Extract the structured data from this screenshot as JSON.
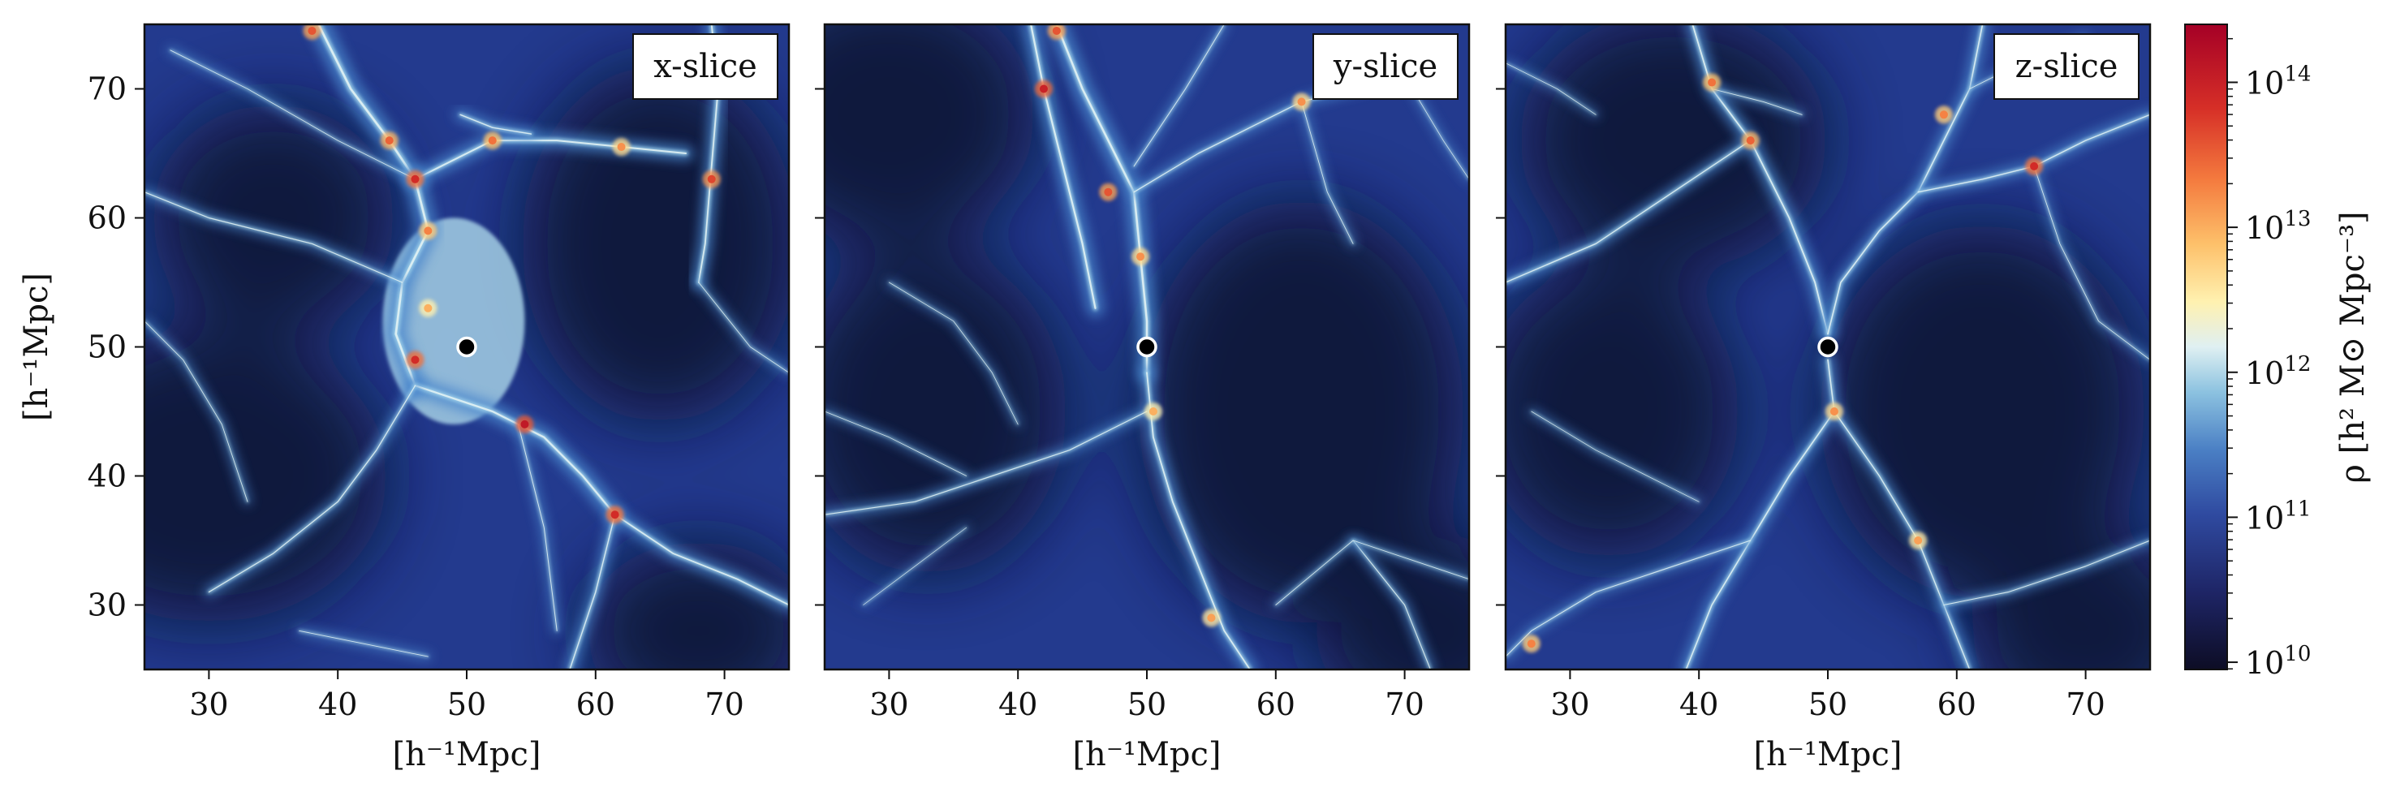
{
  "chart_data": [
    {
      "type": "heatmap",
      "panel_label": "x-slice",
      "xlabel": "[h⁻¹Mpc]",
      "ylabel": "[h⁻¹Mpc]",
      "xlim": [
        25,
        75
      ],
      "ylim": [
        25,
        75
      ],
      "xticks": [
        30,
        40,
        50,
        60,
        70
      ],
      "yticks": [
        30,
        40,
        50,
        60,
        70
      ],
      "marker": {
        "x": 50,
        "y": 50
      },
      "filaments": [
        {
          "pts": [
            [
              38.5,
              75
            ],
            [
              41,
              70
            ],
            [
              44,
              66
            ],
            [
              46,
              63
            ]
          ],
          "w": 3.0
        },
        {
          "pts": [
            [
              46,
              63
            ],
            [
              52,
              66
            ],
            [
              57,
              66
            ],
            [
              62,
              65.5
            ],
            [
              67,
              65
            ]
          ],
          "w": 2.2
        },
        {
          "pts": [
            [
              49.5,
              68
            ],
            [
              52,
              67
            ],
            [
              55,
              66.5
            ]
          ],
          "w": 1.6
        },
        {
          "pts": [
            [
              69,
              75
            ],
            [
              69.5,
              70
            ],
            [
              69,
              64
            ],
            [
              68.5,
              58
            ],
            [
              68,
              55
            ]
          ],
          "w": 2.0
        },
        {
          "pts": [
            [
              46,
              63
            ],
            [
              47,
              59
            ],
            [
              45,
              55
            ],
            [
              44.5,
              51
            ],
            [
              46,
              47
            ]
          ],
          "w": 3.0
        },
        {
          "pts": [
            [
              46,
              47
            ],
            [
              52,
              45
            ],
            [
              56,
              43
            ],
            [
              59,
              40
            ],
            [
              61.5,
              37
            ]
          ],
          "w": 2.6
        },
        {
          "pts": [
            [
              61.5,
              37
            ],
            [
              66,
              34
            ],
            [
              71,
              32
            ],
            [
              75,
              30
            ]
          ],
          "w": 2.0
        },
        {
          "pts": [
            [
              61.5,
              37
            ],
            [
              60,
              31
            ],
            [
              58,
              25
            ]
          ],
          "w": 1.6
        },
        {
          "pts": [
            [
              46,
              47
            ],
            [
              43,
              42
            ],
            [
              40,
              38
            ],
            [
              35,
              34
            ],
            [
              30,
              31
            ]
          ],
          "w": 1.4
        },
        {
          "pts": [
            [
              45,
              55
            ],
            [
              38,
              58
            ],
            [
              30,
              60
            ],
            [
              25,
              62
            ]
          ],
          "w": 1.3
        },
        {
          "pts": [
            [
              54,
              44
            ],
            [
              56,
              36
            ],
            [
              57,
              28
            ]
          ],
          "w": 1.1
        },
        {
          "pts": [
            [
              25,
              52
            ],
            [
              28,
              49
            ],
            [
              31,
              44
            ],
            [
              33,
              38
            ]
          ],
          "w": 1.0
        },
        {
          "pts": [
            [
              37,
              28
            ],
            [
              42,
              27
            ],
            [
              47,
              26
            ]
          ],
          "w": 1.0
        },
        {
          "pts": [
            [
              68,
              55
            ],
            [
              72,
              50
            ],
            [
              75,
              48
            ]
          ],
          "w": 1.0
        },
        {
          "pts": [
            [
              46,
              63
            ],
            [
              40,
              66
            ],
            [
              33,
              70
            ],
            [
              27,
              73
            ]
          ],
          "w": 1.0
        }
      ],
      "blobs": [
        {
          "x": 49,
          "y": 52,
          "rx": 5.5,
          "ry": 8.0,
          "v": 11.9
        }
      ],
      "hotspots": [
        [
          38,
          74.5,
          13.6
        ],
        [
          44,
          66,
          13.5
        ],
        [
          46,
          63,
          13.9
        ],
        [
          52,
          66,
          13.4
        ],
        [
          69,
          63,
          13.7
        ],
        [
          62,
          65.5,
          13.2
        ],
        [
          47,
          59,
          13.3
        ],
        [
          46,
          49,
          13.9
        ],
        [
          54.5,
          44,
          14.1
        ],
        [
          61.5,
          37,
          13.9
        ],
        [
          47,
          53,
          13.0
        ]
      ]
    },
    {
      "type": "heatmap",
      "panel_label": "y-slice",
      "xlabel": "[h⁻¹Mpc]",
      "ylabel": "",
      "xlim": [
        25,
        75
      ],
      "ylim": [
        25,
        75
      ],
      "xticks": [
        30,
        40,
        50,
        60,
        70
      ],
      "yticks": [
        30,
        40,
        50,
        60,
        70
      ],
      "marker": {
        "x": 50,
        "y": 50
      },
      "filaments": [
        {
          "pts": [
            [
              43,
              75
            ],
            [
              45,
              70
            ],
            [
              47,
              66
            ],
            [
              49,
              62
            ],
            [
              49.5,
              57
            ],
            [
              50,
              52
            ],
            [
              50,
              48
            ]
          ],
          "w": 2.8
        },
        {
          "pts": [
            [
              50,
              48
            ],
            [
              50.5,
              43
            ],
            [
              52,
              38
            ],
            [
              54,
              33
            ],
            [
              56,
              28
            ],
            [
              58,
              25
            ]
          ],
          "w": 2.0
        },
        {
          "pts": [
            [
              41,
              75
            ],
            [
              42,
              70
            ],
            [
              43,
              66
            ],
            [
              44,
              62
            ],
            [
              45,
              58
            ],
            [
              46,
              53
            ]
          ],
          "w": 2.4
        },
        {
          "pts": [
            [
              49,
              62
            ],
            [
              54,
              65
            ],
            [
              58,
              67
            ],
            [
              62,
              69
            ],
            [
              66,
              70
            ],
            [
              70,
              71
            ]
          ],
          "w": 1.4
        },
        {
          "pts": [
            [
              49,
              64
            ],
            [
              53,
              70
            ],
            [
              56,
              75
            ]
          ],
          "w": 1.1
        },
        {
          "pts": [
            [
              50,
              45
            ],
            [
              44,
              42
            ],
            [
              38,
              40
            ],
            [
              32,
              38
            ],
            [
              25,
              37
            ]
          ],
          "w": 1.3
        },
        {
          "pts": [
            [
              62,
              69
            ],
            [
              64,
              62
            ],
            [
              66,
              58
            ]
          ],
          "w": 1.0
        },
        {
          "pts": [
            [
              66,
              35
            ],
            [
              70,
              30
            ],
            [
              72,
              25
            ]
          ],
          "w": 1.2
        },
        {
          "pts": [
            [
              60,
              30
            ],
            [
              66,
              35
            ],
            [
              72,
              33
            ],
            [
              75,
              32
            ]
          ],
          "w": 1.0
        },
        {
          "pts": [
            [
              30,
              55
            ],
            [
              35,
              52
            ],
            [
              38,
              48
            ],
            [
              40,
              44
            ]
          ],
          "w": 0.9
        },
        {
          "pts": [
            [
              25,
              45
            ],
            [
              30,
              43
            ],
            [
              36,
              40
            ]
          ],
          "w": 0.9
        },
        {
          "pts": [
            [
              28,
              30
            ],
            [
              32,
              33
            ],
            [
              36,
              36
            ]
          ],
          "w": 0.8
        },
        {
          "pts": [
            [
              70,
              71
            ],
            [
              73,
              66
            ],
            [
              75,
              63
            ]
          ],
          "w": 0.9
        }
      ],
      "blobs": [],
      "hotspots": [
        [
          42,
          70,
          14.0
        ],
        [
          43,
          74.5,
          13.6
        ],
        [
          47,
          62,
          13.6
        ],
        [
          49.5,
          57,
          13.2
        ],
        [
          62,
          69,
          13.2
        ],
        [
          50.5,
          45,
          13.0
        ],
        [
          55,
          29,
          13.1
        ]
      ]
    },
    {
      "type": "heatmap",
      "panel_label": "z-slice",
      "xlabel": "[h⁻¹Mpc]",
      "ylabel": "",
      "xlim": [
        25,
        75
      ],
      "ylim": [
        25,
        75
      ],
      "xticks": [
        30,
        40,
        50,
        60,
        70
      ],
      "yticks": [
        30,
        40,
        50,
        60,
        70
      ],
      "marker": {
        "x": 50,
        "y": 50
      },
      "filaments": [
        {
          "pts": [
            [
              39.5,
              75
            ],
            [
              41,
              70
            ],
            [
              44,
              66
            ],
            [
              47,
              60
            ],
            [
              49,
              55
            ],
            [
              50,
              51
            ]
          ],
          "w": 2.0
        },
        {
          "pts": [
            [
              50,
              51
            ],
            [
              51,
              55
            ],
            [
              54,
              59
            ],
            [
              57,
              62
            ],
            [
              59,
              66
            ],
            [
              61,
              70
            ],
            [
              62,
              75
            ]
          ],
          "w": 1.8
        },
        {
          "pts": [
            [
              44,
              66
            ],
            [
              38,
              62
            ],
            [
              32,
              58
            ],
            [
              25,
              55
            ]
          ],
          "w": 1.6
        },
        {
          "pts": [
            [
              57,
              62
            ],
            [
              62,
              63
            ],
            [
              66,
              64
            ],
            [
              70,
              66
            ],
            [
              75,
              68
            ]
          ],
          "w": 1.6
        },
        {
          "pts": [
            [
              50,
              49
            ],
            [
              50.5,
              45
            ],
            [
              47,
              40
            ],
            [
              44,
              35
            ],
            [
              41,
              30
            ],
            [
              39,
              25
            ]
          ],
          "w": 1.8
        },
        {
          "pts": [
            [
              50.5,
              45
            ],
            [
              54,
              40
            ],
            [
              57,
              35
            ],
            [
              59,
              30
            ],
            [
              61,
              25
            ]
          ],
          "w": 1.6
        },
        {
          "pts": [
            [
              59,
              30
            ],
            [
              64,
              31
            ],
            [
              70,
              33
            ],
            [
              75,
              35
            ]
          ],
          "w": 1.2
        },
        {
          "pts": [
            [
              44,
              35
            ],
            [
              38,
              33
            ],
            [
              32,
              31
            ],
            [
              27,
              28
            ],
            [
              25,
              26
            ]
          ],
          "w": 1.2
        },
        {
          "pts": [
            [
              41,
              70
            ],
            [
              45,
              69
            ],
            [
              48,
              68
            ]
          ],
          "w": 1.0
        },
        {
          "pts": [
            [
              61,
              70
            ],
            [
              65,
              72
            ],
            [
              70,
              74
            ]
          ],
          "w": 1.0
        },
        {
          "pts": [
            [
              25,
              72
            ],
            [
              29,
              70
            ],
            [
              32,
              68
            ]
          ],
          "w": 0.9
        },
        {
          "pts": [
            [
              66,
              64
            ],
            [
              68,
              58
            ],
            [
              71,
              52
            ],
            [
              75,
              49
            ]
          ],
          "w": 1.0
        },
        {
          "pts": [
            [
              27,
              45
            ],
            [
              32,
              42
            ],
            [
              36,
              40
            ],
            [
              40,
              38
            ]
          ],
          "w": 0.9
        }
      ],
      "blobs": [],
      "hotspots": [
        [
          41,
          70.5,
          13.4
        ],
        [
          44,
          66,
          13.5
        ],
        [
          66,
          64,
          13.9
        ],
        [
          59,
          68,
          13.3
        ],
        [
          50.5,
          45,
          13.2
        ],
        [
          27,
          27,
          13.3
        ],
        [
          57,
          35,
          13.1
        ]
      ]
    }
  ],
  "colorbar": {
    "label": "ρ [h² M⊙ Mpc⁻³]",
    "scale": "log",
    "range_log10": [
      9.95,
      14.4
    ],
    "tick_exponents": [
      10,
      11,
      12,
      13,
      14
    ],
    "colormap": "RdYlBu_r",
    "colors": [
      "#1a1a3a",
      "#2a3f8f",
      "#4fa0d0",
      "#e8f4ee",
      "#fee58a",
      "#f7903e",
      "#d8232a",
      "#a50026"
    ]
  },
  "annotations": {
    "panel_prefix": [
      "x",
      "y",
      "z"
    ],
    "panel_suffix": "-slice"
  }
}
